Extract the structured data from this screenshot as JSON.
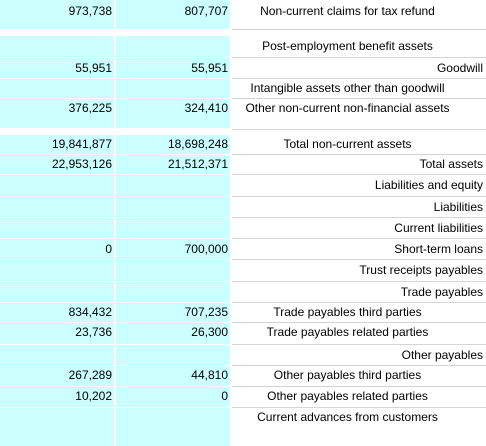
{
  "rows": [
    {
      "c1": "973,738",
      "c2": "807,707",
      "label": "Non-current claims for tax refund",
      "align": "center"
    },
    {
      "c1": "",
      "c2": "",
      "label": "Post-employment benefit assets",
      "align": "center"
    },
    {
      "c1": "55,951",
      "c2": "55,951",
      "label": "Goodwill",
      "align": "right"
    },
    {
      "c1": "",
      "c2": "",
      "label": "Intangible assets other than goodwill",
      "align": "center"
    },
    {
      "c1": "376,225",
      "c2": "324,410",
      "label": "Other non-current non-financial assets",
      "align": "center"
    },
    {
      "c1": "19,841,877",
      "c2": "18,698,248",
      "label": "Total non-current assets",
      "align": "center"
    },
    {
      "c1": "22,953,126",
      "c2": "21,512,371",
      "label": "Total assets",
      "align": "right"
    },
    {
      "c1": "",
      "c2": "",
      "label": "Liabilities and equity",
      "align": "right"
    },
    {
      "c1": "",
      "c2": "",
      "label": "Liabilities",
      "align": "right"
    },
    {
      "c1": "",
      "c2": "",
      "label": "Current liabilities",
      "align": "right"
    },
    {
      "c1": "0",
      "c2": "700,000",
      "label": "Short-term loans",
      "align": "right"
    },
    {
      "c1": "",
      "c2": "",
      "label": "Trust receipts payables",
      "align": "right"
    },
    {
      "c1": "",
      "c2": "",
      "label": "Trade payables",
      "align": "right"
    },
    {
      "c1": "834,432",
      "c2": "707,235",
      "label": "Trade payables third parties",
      "align": "center"
    },
    {
      "c1": "23,736",
      "c2": "26,300",
      "label": "Trade payables related parties",
      "align": "center"
    },
    {
      "c1": "",
      "c2": "",
      "label": "Other payables",
      "align": "right"
    },
    {
      "c1": "267,289",
      "c2": "44,810",
      "label": "Other payables third parties",
      "align": "center"
    },
    {
      "c1": "10,202",
      "c2": "0",
      "label": "Other payables related parties",
      "align": "center"
    },
    {
      "c1": "",
      "c2": "",
      "label": "Current advances from customers",
      "align": "center"
    }
  ]
}
